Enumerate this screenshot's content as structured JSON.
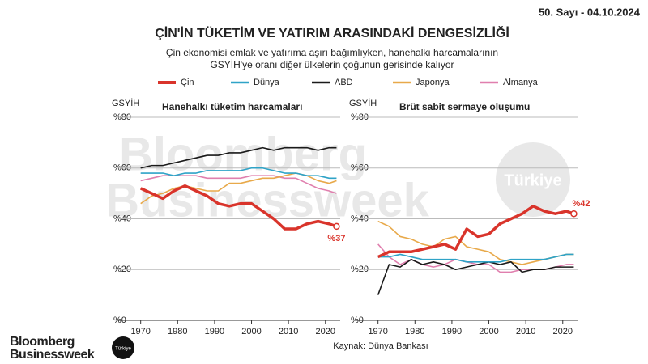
{
  "header": {
    "issue": "50. Sayı - 04.10.2024",
    "title": "ÇİN'İN TÜKETİM VE YATIRIM ARASINDAKİ DENGESİZLİĞİ",
    "subtitle": [
      "Çin ekonomisi emlak ve yatırıma aşırı bağımlıyken, hanehalkı harcamalarının",
      "GSYİH'ye oranı diğer ülkelerin çoğunun gerisinde kalıyor"
    ]
  },
  "source": "Kaynak: Dünya Bankası",
  "branding": {
    "logo": [
      "Bloomberg",
      "Businessweek"
    ],
    "badge": "Türkiye"
  },
  "chart_data": [
    {
      "type": "line",
      "title": "Hanehalkı tüketim harcamaları",
      "y_label": "GSYİH",
      "x": [
        1970,
        1973,
        1976,
        1979,
        1982,
        1985,
        1988,
        1991,
        1994,
        1997,
        2000,
        2003,
        2006,
        2009,
        2012,
        2015,
        2018,
        2021,
        2023
      ],
      "xlim": [
        1967,
        2024
      ],
      "xticks": [
        1970,
        1980,
        1990,
        2000,
        2010,
        2020
      ],
      "ylim": [
        0,
        80
      ],
      "yticks": [
        {
          "value": 0,
          "label": "%0"
        },
        {
          "value": 20,
          "label": "%20"
        },
        {
          "value": 40,
          "label": "%40"
        },
        {
          "value": 60,
          "label": "%60"
        },
        {
          "value": 80,
          "label": "%80"
        }
      ],
      "grid": true,
      "series": [
        {
          "name": "Çin",
          "color": "#d9342b",
          "values": [
            52,
            50,
            48,
            51,
            53,
            51,
            49,
            46,
            45,
            46,
            46,
            43,
            40,
            36,
            36,
            38,
            39,
            38,
            37
          ],
          "value_labels": [
            null,
            null,
            null,
            null,
            null,
            null,
            null,
            null,
            null,
            null,
            null,
            null,
            null,
            null,
            null,
            null,
            null,
            null,
            "%37"
          ]
        },
        {
          "name": "Dünya",
          "color": "#2fa3c7",
          "values": [
            58,
            58,
            58,
            57,
            58,
            58,
            59,
            59,
            59,
            59,
            60,
            60,
            59,
            58,
            58,
            57,
            57,
            56,
            56
          ]
        },
        {
          "name": "ABD",
          "color": "#1a1a1a",
          "values": [
            60,
            61,
            61,
            62,
            63,
            64,
            65,
            65,
            66,
            66,
            67,
            68,
            67,
            68,
            68,
            68,
            67,
            68,
            68
          ]
        },
        {
          "name": "Japonya",
          "color": "#e8a94a",
          "values": [
            46,
            49,
            50,
            52,
            53,
            52,
            51,
            51,
            54,
            54,
            55,
            56,
            56,
            57,
            58,
            57,
            55,
            54,
            55
          ]
        },
        {
          "name": "Almanya",
          "color": "#e07fae",
          "values": [
            55,
            56,
            57,
            57,
            57,
            57,
            56,
            56,
            56,
            56,
            57,
            57,
            57,
            56,
            56,
            54,
            52,
            51,
            50
          ]
        }
      ]
    },
    {
      "type": "line",
      "title": "Brüt sabit sermaye oluşumu",
      "y_label": "GSYİH",
      "x": [
        1970,
        1973,
        1976,
        1979,
        1982,
        1985,
        1988,
        1991,
        1994,
        1997,
        2000,
        2003,
        2006,
        2009,
        2012,
        2015,
        2018,
        2021,
        2023
      ],
      "xlim": [
        1967,
        2024
      ],
      "xticks": [
        1970,
        1980,
        1990,
        2000,
        2010,
        2020
      ],
      "ylim": [
        0,
        80
      ],
      "yticks": [
        {
          "value": 0,
          "label": "%0"
        },
        {
          "value": 20,
          "label": "%20"
        },
        {
          "value": 40,
          "label": "%40"
        },
        {
          "value": 60,
          "label": "%60"
        },
        {
          "value": 80,
          "label": "%80"
        }
      ],
      "grid": true,
      "series": [
        {
          "color": "#d9342b",
          "values": [
            25,
            27,
            27,
            27,
            28,
            29,
            30,
            28,
            36,
            33,
            34,
            38,
            40,
            42,
            45,
            43,
            42,
            43,
            42
          ],
          "value_labels": [
            null,
            null,
            null,
            null,
            null,
            null,
            null,
            null,
            null,
            null,
            null,
            null,
            null,
            null,
            null,
            null,
            null,
            null,
            "%42"
          ]
        },
        {
          "color": "#2fa3c7",
          "values": [
            25,
            25,
            26,
            25,
            24,
            24,
            24,
            24,
            23,
            23,
            23,
            23,
            24,
            24,
            24,
            24,
            25,
            26,
            26
          ]
        },
        {
          "color": "#1a1a1a",
          "values": [
            10,
            22,
            21,
            24,
            22,
            23,
            22,
            20,
            21,
            22,
            23,
            22,
            23,
            19,
            20,
            20,
            21,
            21,
            21
          ]
        },
        {
          "color": "#e8a94a",
          "values": [
            39,
            37,
            33,
            32,
            30,
            29,
            32,
            33,
            29,
            28,
            27,
            24,
            23,
            22,
            23,
            24,
            25,
            26,
            26
          ]
        },
        {
          "color": "#e07fae",
          "values": [
            30,
            25,
            22,
            24,
            22,
            21,
            22,
            24,
            23,
            22,
            22,
            19,
            19,
            20,
            20,
            20,
            21,
            22,
            22
          ]
        }
      ]
    }
  ]
}
